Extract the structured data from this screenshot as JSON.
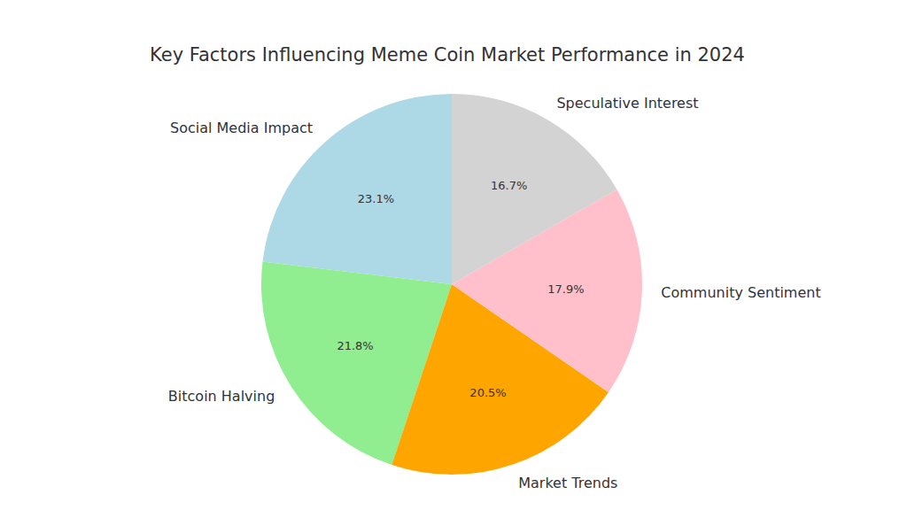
{
  "chart_data": {
    "type": "pie",
    "title": "Key Factors Influencing Meme Coin Market Performance in 2024",
    "categories": [
      "Social Media Impact",
      "Bitcoin Halving",
      "Market Trends",
      "Community Sentiment",
      "Speculative Interest"
    ],
    "values": [
      23.1,
      21.8,
      20.5,
      17.9,
      16.7
    ],
    "value_labels": [
      "23.1%",
      "21.8%",
      "20.5%",
      "17.9%",
      "16.7%"
    ],
    "colors": [
      "#add8e6",
      "#90ee90",
      "#ffa500",
      "#ffc0cb",
      "#d3d3d3"
    ],
    "data_labels": true
  }
}
